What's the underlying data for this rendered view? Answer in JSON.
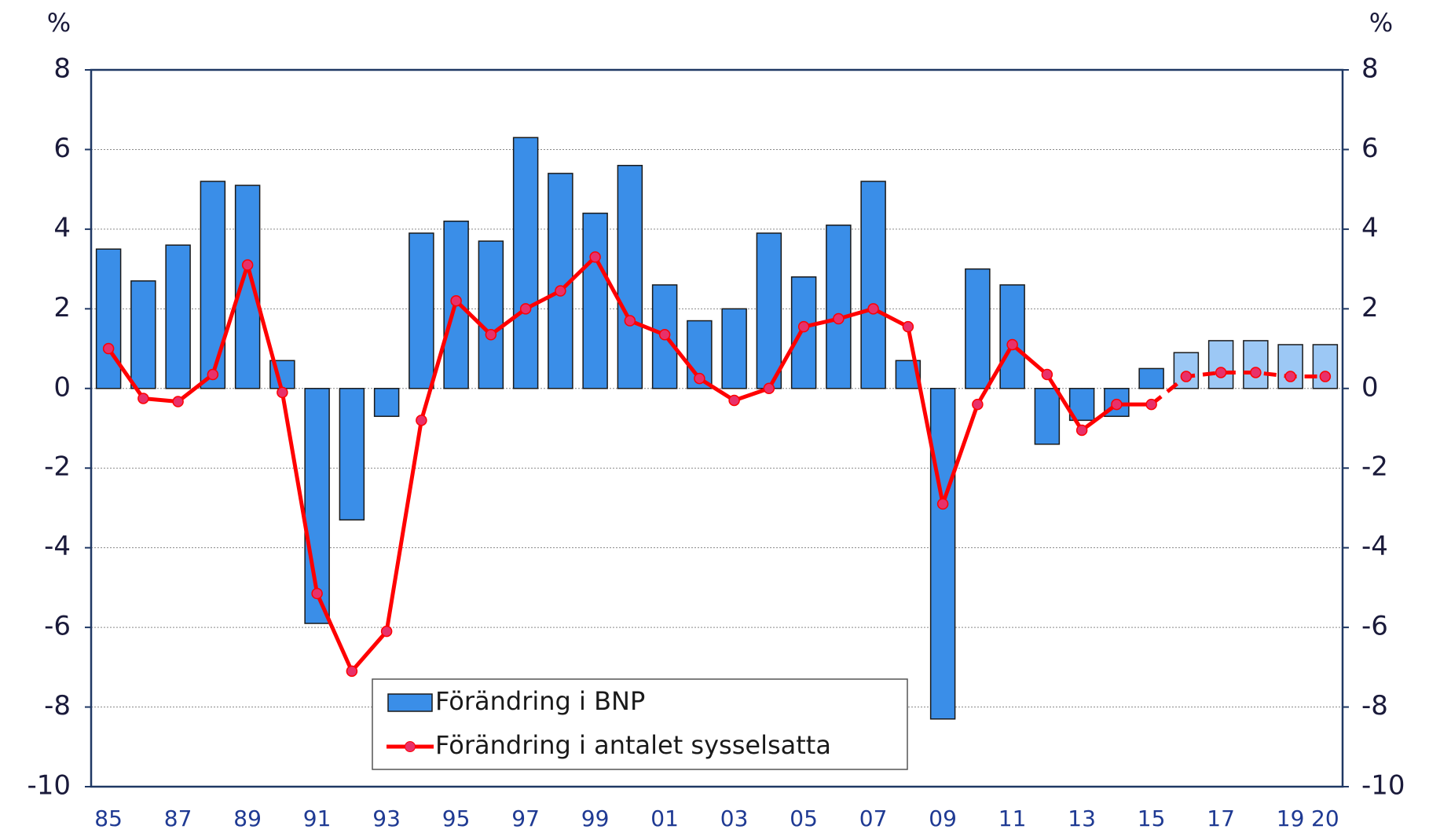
{
  "chart_data": {
    "type": "bar-line",
    "axis_label": "%",
    "y2_axis_label": "%",
    "categories": [
      "85",
      null,
      "87",
      null,
      "89",
      null,
      "91",
      null,
      "93",
      null,
      "95",
      null,
      "97",
      null,
      "99",
      null,
      "01",
      null,
      "03",
      null,
      "05",
      null,
      "07",
      null,
      "09",
      null,
      "11",
      null,
      "13",
      null,
      "15",
      null,
      "17",
      null,
      "19",
      "20"
    ],
    "series": [
      {
        "name": "Förändring i BNP",
        "type": "bar",
        "color": "#3a8ee8",
        "colors": [
          "#3a8ee8",
          "#3a8ee8",
          "#3a8ee8",
          "#3a8ee8",
          "#3a8ee8",
          "#3a8ee8",
          "#3a8ee8",
          "#3a8ee8",
          "#3a8ee8",
          "#3a8ee8",
          "#3a8ee8",
          "#3a8ee8",
          "#3a8ee8",
          "#3a8ee8",
          "#3a8ee8",
          "#3a8ee8",
          "#3a8ee8",
          "#3a8ee8",
          "#3a8ee8",
          "#3a8ee8",
          "#3a8ee8",
          "#3a8ee8",
          "#3a8ee8",
          "#3a8ee8",
          "#3a8ee8",
          "#3a8ee8",
          "#3a8ee8",
          "#3a8ee8",
          "#3a8ee8",
          "#3a8ee8",
          "#3a8ee8",
          "#9cc8f5",
          "#9cc8f5",
          "#9cc8f5",
          "#9cc8f5",
          "#9cc8f5"
        ],
        "values": [
          3.5,
          2.7,
          3.6,
          5.2,
          5.1,
          0.7,
          -5.9,
          -3.3,
          -0.7,
          3.9,
          4.2,
          3.7,
          6.3,
          5.4,
          4.4,
          5.6,
          2.6,
          1.7,
          2.0,
          3.9,
          2.8,
          4.1,
          5.2,
          0.7,
          -8.3,
          3.0,
          2.6,
          -1.4,
          -0.8,
          -0.7,
          0.5,
          0.9,
          1.2,
          1.2,
          1.1,
          1.1
        ]
      },
      {
        "name": "Förändring i antalet sysselsatta",
        "type": "line",
        "color": "#ff0000",
        "marker_color": "#e8316a",
        "dashed_from": 30,
        "values": [
          1.0,
          -0.25,
          -0.33,
          0.35,
          3.1,
          -0.1,
          -5.15,
          -7.1,
          -6.1,
          -0.8,
          2.2,
          1.35,
          2.0,
          2.45,
          3.3,
          1.7,
          1.35,
          0.25,
          -0.3,
          0.0,
          1.55,
          1.75,
          2.0,
          1.55,
          -2.9,
          -0.4,
          1.1,
          0.35,
          -1.05,
          -0.4,
          -0.4,
          0.3,
          0.4,
          0.4,
          0.3,
          0.3
        ]
      }
    ],
    "ylim": [
      -10,
      8
    ],
    "yticks": [
      -10,
      -8,
      -6,
      -4,
      -2,
      0,
      2,
      4,
      6,
      8
    ],
    "y2lim": [
      -10,
      8
    ],
    "y2ticks": [
      -10,
      -8,
      -6,
      -4,
      -2,
      0,
      2,
      4,
      6,
      8
    ],
    "grid": true
  }
}
